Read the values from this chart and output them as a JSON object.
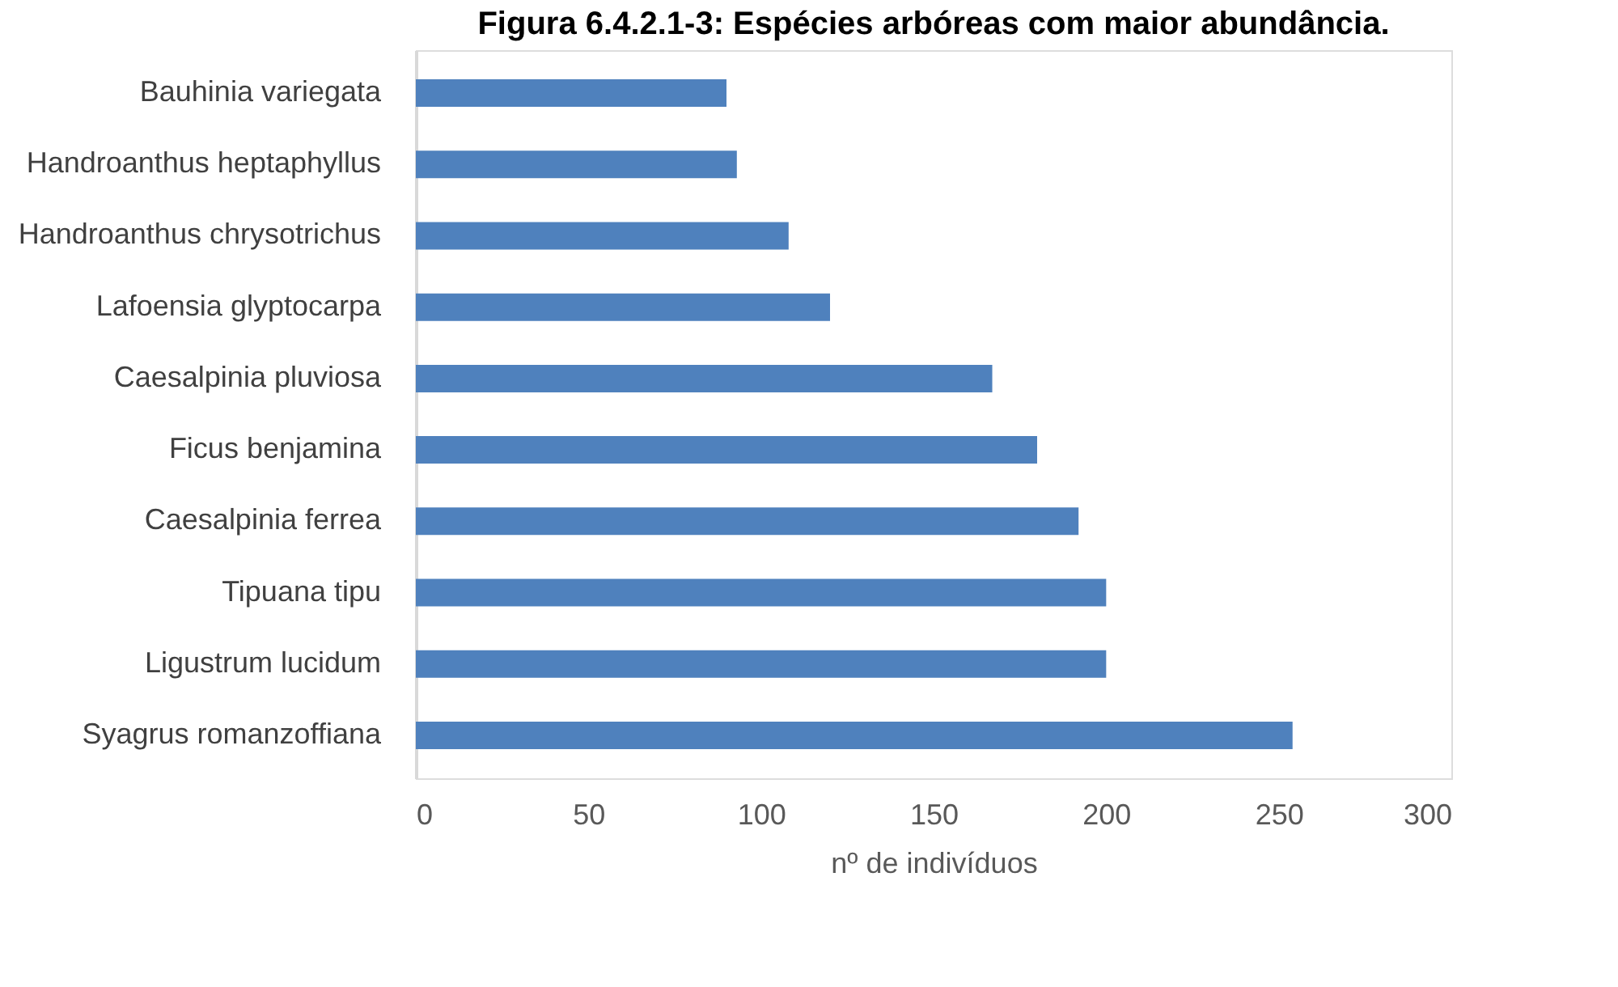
{
  "chart_data": {
    "type": "bar",
    "orientation": "horizontal",
    "title": "Figura 6.4.2.1-3: Espécies arbóreas com maior abundância.",
    "xlabel": "nº de indivíduos",
    "categories": [
      "Bauhinia variegata",
      "Handroanthus heptaphyllus",
      "Handroanthus chrysotrichus",
      "Lafoensia glyptocarpa",
      "Caesalpinia pluviosa",
      "Ficus benjamina",
      "Caesalpinia ferrea",
      "Tipuana tipu",
      "Ligustrum lucidum",
      "Syagrus romanzoffiana"
    ],
    "values": [
      90,
      93,
      108,
      120,
      167,
      180,
      192,
      200,
      200,
      254
    ],
    "color": "#4f81bd",
    "xlim": [
      0,
      300
    ],
    "xticks": [
      0,
      50,
      100,
      150,
      200,
      250,
      300
    ],
    "grid": false
  }
}
